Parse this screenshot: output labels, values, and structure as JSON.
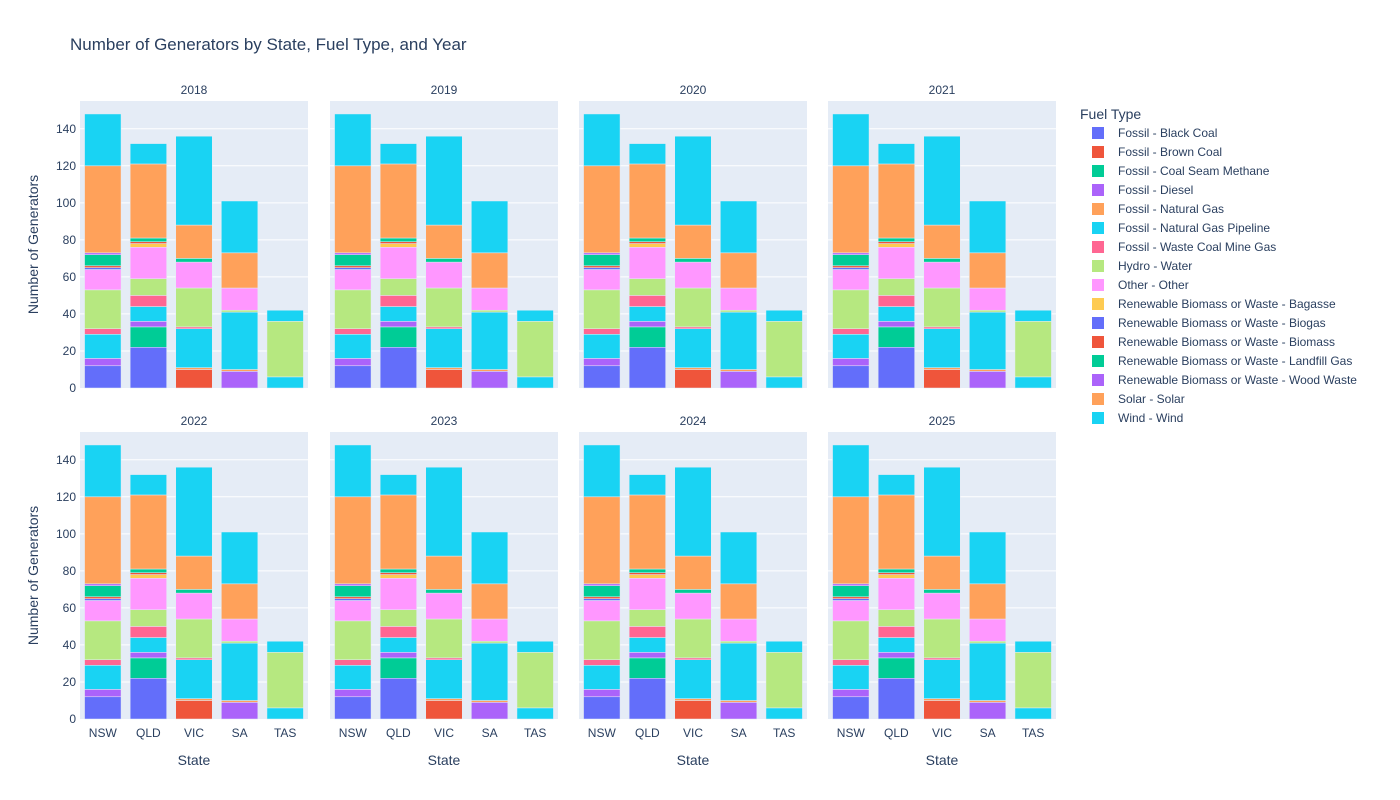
{
  "chart_data": {
    "type": "bar",
    "stacked": true,
    "title": "Number of Generators by State, Fuel Type, and Year",
    "xlabel": "State",
    "ylabel": "Number of Generators",
    "ylim": [
      0,
      155
    ],
    "yticks": [
      0,
      20,
      40,
      60,
      80,
      100,
      120,
      140
    ],
    "grid": true,
    "legend_title": "Fuel Type",
    "legend_position": "right",
    "panels": [
      "2018",
      "2019",
      "2020",
      "2021",
      "2022",
      "2023",
      "2024",
      "2025"
    ],
    "categories": [
      "NSW",
      "QLD",
      "VIC",
      "SA",
      "TAS"
    ],
    "series": [
      {
        "name": "Fossil - Black Coal",
        "color": "#636efa",
        "values": [
          12,
          22,
          0,
          0,
          0
        ]
      },
      {
        "name": "Fossil - Brown Coal",
        "color": "#EF553B",
        "values": [
          0,
          0,
          10,
          0,
          0
        ]
      },
      {
        "name": "Fossil - Coal Seam Methane",
        "color": "#00cc96",
        "values": [
          0,
          11,
          0,
          0,
          0
        ]
      },
      {
        "name": "Fossil - Diesel",
        "color": "#ab63fa",
        "values": [
          4,
          3,
          0,
          9,
          0
        ]
      },
      {
        "name": "Fossil - Natural Gas",
        "color": "#FFA15A",
        "values": [
          0,
          0,
          1,
          1,
          0
        ]
      },
      {
        "name": "Fossil - Natural Gas Pipeline",
        "color": "#19d3f3",
        "values": [
          13,
          8,
          21,
          31,
          6
        ]
      },
      {
        "name": "Fossil - Waste Coal Mine Gas",
        "color": "#FF6692",
        "values": [
          3,
          6,
          1,
          0,
          0
        ]
      },
      {
        "name": "Hydro - Water",
        "color": "#B6E880",
        "values": [
          21,
          9,
          21,
          1,
          30
        ]
      },
      {
        "name": "Other - Other",
        "color": "#FF97FF",
        "values": [
          11,
          17,
          14,
          12,
          0
        ]
      },
      {
        "name": "Renewable Biomass or Waste - Bagasse",
        "color": "#FECB52",
        "values": [
          0,
          2,
          0,
          0,
          0
        ]
      },
      {
        "name": "Renewable Biomass or Waste - Biogas",
        "color": "#636efa",
        "values": [
          1,
          0,
          0,
          0,
          0
        ]
      },
      {
        "name": "Renewable Biomass or Waste - Biomass",
        "color": "#EF553B",
        "values": [
          1,
          1,
          0,
          0,
          0
        ]
      },
      {
        "name": "Renewable Biomass or Waste - Landfill Gas",
        "color": "#00cc96",
        "values": [
          6,
          2,
          2,
          0,
          0
        ]
      },
      {
        "name": "Renewable Biomass or Waste - Wood Waste",
        "color": "#ab63fa",
        "values": [
          1,
          0,
          0,
          0,
          0
        ]
      },
      {
        "name": "Solar - Solar",
        "color": "#FFA15A",
        "values": [
          47,
          40,
          18,
          19,
          0
        ]
      },
      {
        "name": "Wind - Wind",
        "color": "#19d3f3",
        "values": [
          28,
          11,
          48,
          28,
          6
        ]
      }
    ]
  }
}
